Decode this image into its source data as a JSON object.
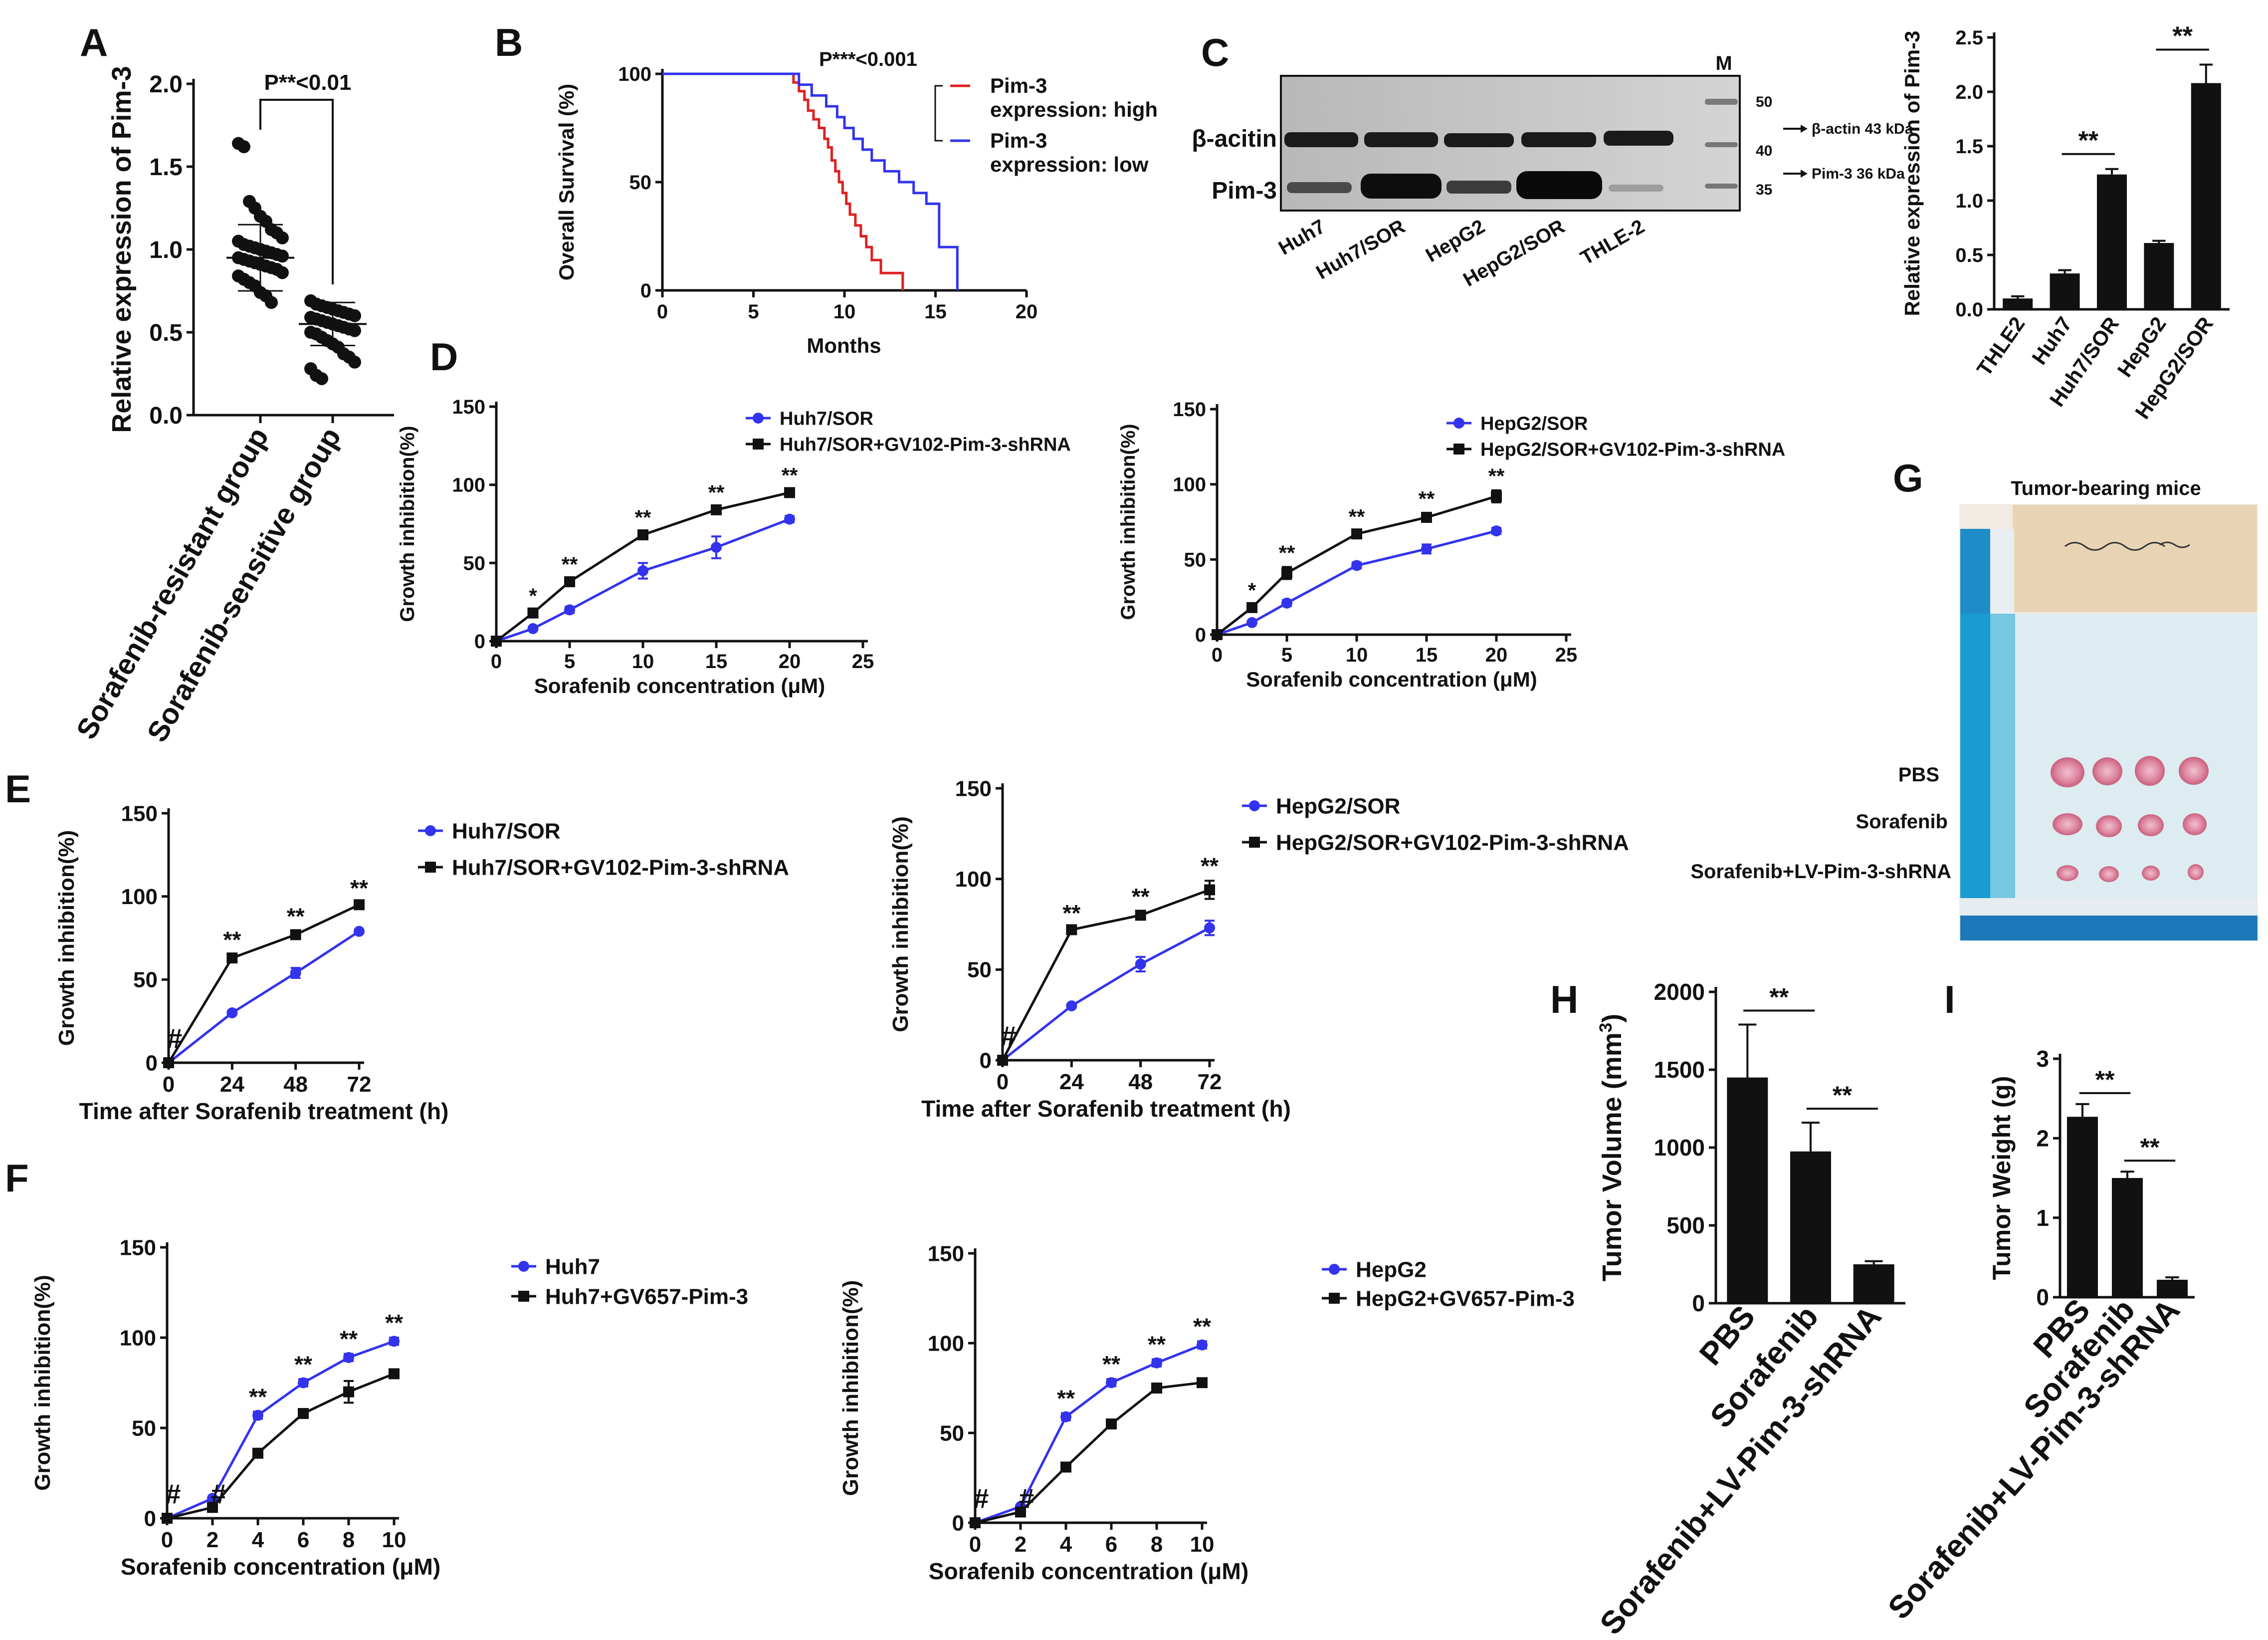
{
  "panel_letters": {
    "A": "A",
    "B": "B",
    "C": "C",
    "D": "D",
    "E": "E",
    "F": "F",
    "G": "G",
    "H": "H",
    "I": "I"
  },
  "colors": {
    "blue": "#3333ee",
    "black": "#111111",
    "red": "#e02020",
    "gray": "#f2f2f2"
  },
  "chart_data": [
    {
      "id": "A",
      "type": "scatter",
      "title": "",
      "ylabel": "Relative expression of Pim-3",
      "ylim": [
        0,
        2.0
      ],
      "yticks": [
        "0.0",
        "0.5",
        "1.0",
        "1.5",
        "2.0"
      ],
      "categories": [
        "Sorafenib-resistant group",
        "Sorafenib-sensitive group"
      ],
      "annotation": "P**<0.01",
      "means": [
        0.95,
        0.55
      ],
      "errors": [
        0.2,
        0.13
      ],
      "points": [
        [
          1.64,
          1.62,
          1.29,
          1.25,
          1.2,
          1.17,
          1.12,
          1.1,
          1.07,
          1.05,
          1.03,
          1.02,
          1.01,
          1.0,
          0.99,
          0.98,
          0.97,
          0.96,
          0.95,
          0.94,
          0.93,
          0.92,
          0.91,
          0.9,
          0.89,
          0.88,
          0.86,
          0.84,
          0.82,
          0.8,
          0.78,
          0.74,
          0.72,
          0.68
        ],
        [
          0.69,
          0.67,
          0.66,
          0.65,
          0.64,
          0.63,
          0.62,
          0.61,
          0.6,
          0.59,
          0.58,
          0.57,
          0.56,
          0.55,
          0.54,
          0.53,
          0.52,
          0.51,
          0.5,
          0.49,
          0.47,
          0.45,
          0.43,
          0.41,
          0.37,
          0.35,
          0.32,
          0.28,
          0.24,
          0.22
        ]
      ]
    },
    {
      "id": "B",
      "type": "line",
      "title": "",
      "xlabel": "Months",
      "ylabel": "Overall Survival (%)",
      "xlim": [
        0,
        20
      ],
      "ylim": [
        0,
        100
      ],
      "xticks": [
        "0",
        "5",
        "10",
        "15",
        "20"
      ],
      "yticks": [
        "0",
        "50",
        "100"
      ],
      "annotation": "P***<0.001",
      "series": [
        {
          "name": "Pim-3 expression: high",
          "line1": "Pim-3",
          "line2": "expression: high",
          "color": "#e02020",
          "x": [
            0,
            7.2,
            7.2,
            7.5,
            7.5,
            7.8,
            7.8,
            8.0,
            8.0,
            8.3,
            8.3,
            8.6,
            8.6,
            8.9,
            8.9,
            9.1,
            9.1,
            9.3,
            9.3,
            9.5,
            9.5,
            9.7,
            9.7,
            9.9,
            9.9,
            10.1,
            10.1,
            10.3,
            10.3,
            10.6,
            10.6,
            10.9,
            10.9,
            11.2,
            11.2,
            11.5,
            11.5,
            12.0,
            12.0,
            13.2,
            13.2
          ],
          "y": [
            100,
            100,
            96,
            96,
            92,
            92,
            88,
            88,
            83,
            83,
            79,
            79,
            75,
            75,
            70,
            70,
            66,
            66,
            60,
            60,
            55,
            55,
            50,
            50,
            45,
            45,
            40,
            40,
            35,
            35,
            30,
            30,
            25,
            25,
            20,
            20,
            14,
            14,
            8,
            8,
            0
          ]
        },
        {
          "name": "Pim-3 expression: low",
          "line1": "Pim-3",
          "line2": "expression: low",
          "color": "#3333ee",
          "x": [
            0,
            7.5,
            7.5,
            8.2,
            8.2,
            9.0,
            9.0,
            9.6,
            9.6,
            10.0,
            10.0,
            10.5,
            10.5,
            11.0,
            11.0,
            11.5,
            11.5,
            12.2,
            12.2,
            13.0,
            13.0,
            13.8,
            13.8,
            14.5,
            14.5,
            15.2,
            15.2,
            16.2,
            16.2
          ],
          "y": [
            100,
            100,
            95,
            95,
            90,
            90,
            85,
            85,
            80,
            80,
            75,
            75,
            70,
            70,
            65,
            65,
            60,
            60,
            55,
            55,
            50,
            50,
            45,
            45,
            40,
            40,
            20,
            20,
            0
          ]
        }
      ]
    },
    {
      "id": "C_bar",
      "type": "bar",
      "title": "",
      "ylabel": "Relative expression of Pim-3",
      "ylim": [
        0,
        2.5
      ],
      "yticks": [
        "0.0",
        "0.5",
        "1.0",
        "1.5",
        "2.0",
        "2.5"
      ],
      "categories": [
        "THLE2",
        "Huh7",
        "Huh7/SOR",
        "HepG2",
        "HepG2/SOR"
      ],
      "values": [
        0.1,
        0.33,
        1.24,
        0.61,
        2.08
      ],
      "errors": [
        0.02,
        0.03,
        0.05,
        0.02,
        0.17
      ],
      "sig": [
        {
          "from": 1,
          "to": 2,
          "label": "**"
        },
        {
          "from": 3,
          "to": 4,
          "label": "**"
        }
      ]
    },
    {
      "id": "D_left",
      "type": "line",
      "xlabel": "Sorafenib  concentration (μM)",
      "ylabel": "Growth inhibition(%)",
      "xlim": [
        0,
        25
      ],
      "ylim": [
        0,
        150
      ],
      "xticks": [
        "0",
        "5",
        "10",
        "15",
        "20",
        "25"
      ],
      "yticks": [
        "0",
        "50",
        "100",
        "150"
      ],
      "series": [
        {
          "name": "Huh7/SOR",
          "color": "#3333ee",
          "marker": "circle",
          "x": [
            0,
            2.5,
            5,
            10,
            15,
            20
          ],
          "y": [
            0,
            8,
            20,
            45,
            60,
            78
          ],
          "err": [
            0,
            1,
            2,
            5,
            7,
            2
          ]
        },
        {
          "name": "Huh7/SOR+GV102-Pim-3-shRNA",
          "color": "#111111",
          "marker": "square",
          "x": [
            0,
            2.5,
            5,
            10,
            15,
            20
          ],
          "y": [
            0,
            18,
            38,
            68,
            84,
            95
          ],
          "err": [
            0,
            2,
            2,
            2,
            2,
            2
          ]
        }
      ],
      "marks": [
        {
          "x": 2.5,
          "label": "*"
        },
        {
          "x": 5,
          "label": "**"
        },
        {
          "x": 10,
          "label": "**"
        },
        {
          "x": 15,
          "label": "**"
        },
        {
          "x": 20,
          "label": "**"
        }
      ]
    },
    {
      "id": "D_right",
      "type": "line",
      "xlabel": "Sorafenib  concentration (μM)",
      "ylabel": "Growth inhibition(%)",
      "xlim": [
        0,
        25
      ],
      "ylim": [
        0,
        150
      ],
      "xticks": [
        "0",
        "5",
        "10",
        "15",
        "20",
        "25"
      ],
      "yticks": [
        "0",
        "50",
        "100",
        "150"
      ],
      "series": [
        {
          "name": "HepG2/SOR",
          "color": "#3333ee",
          "marker": "circle",
          "x": [
            0,
            2.5,
            5,
            10,
            15,
            20
          ],
          "y": [
            0,
            8,
            21,
            46,
            57,
            69
          ],
          "err": [
            0,
            1,
            2,
            2,
            3,
            2
          ]
        },
        {
          "name": "HepG2/SOR+GV102-Pim-3-shRNA",
          "color": "#111111",
          "marker": "square",
          "x": [
            0,
            2.5,
            5,
            10,
            15,
            20
          ],
          "y": [
            0,
            18,
            41,
            67,
            78,
            92
          ],
          "err": [
            0,
            2,
            4,
            2,
            3,
            4
          ]
        }
      ],
      "marks": [
        {
          "x": 2.5,
          "label": "*"
        },
        {
          "x": 5,
          "label": "**"
        },
        {
          "x": 10,
          "label": "**"
        },
        {
          "x": 15,
          "label": "**"
        },
        {
          "x": 20,
          "label": "**"
        }
      ]
    },
    {
      "id": "E_left",
      "type": "line",
      "xlabel": "Time after Sorafenib  treatment (h)",
      "ylabel": "Growth inhibition(%)",
      "xcats": [
        "0",
        "24",
        "48",
        "72"
      ],
      "ylim": [
        0,
        150
      ],
      "yticks": [
        "0",
        "50",
        "100",
        "150"
      ],
      "series": [
        {
          "name": "Huh7/SOR",
          "color": "#3333ee",
          "marker": "circle",
          "y": [
            0,
            30,
            54,
            79
          ],
          "err": [
            0,
            1,
            3,
            1
          ]
        },
        {
          "name": "Huh7/SOR+GV102-Pim-3-shRNA",
          "color": "#111111",
          "marker": "square",
          "y": [
            0,
            63,
            77,
            95
          ],
          "err": [
            0,
            2,
            2,
            1
          ]
        }
      ],
      "marks": [
        {
          "i": 0,
          "label": "#"
        },
        {
          "i": 1,
          "label": "**"
        },
        {
          "i": 2,
          "label": "**"
        },
        {
          "i": 3,
          "label": "**"
        }
      ]
    },
    {
      "id": "E_right",
      "type": "line",
      "xlabel": "Time after Sorafenib  treatment (h)",
      "ylabel": "Growth inhibition(%)",
      "xcats": [
        "0",
        "24",
        "48",
        "72"
      ],
      "ylim": [
        0,
        150
      ],
      "yticks": [
        "0",
        "50",
        "100",
        "150"
      ],
      "series": [
        {
          "name": "HepG2/SOR",
          "color": "#3333ee",
          "marker": "circle",
          "y": [
            0,
            30,
            53,
            73
          ],
          "err": [
            0,
            1,
            4,
            4
          ]
        },
        {
          "name": "HepG2/SOR+GV102-Pim-3-shRNA",
          "color": "#111111",
          "marker": "square",
          "y": [
            0,
            72,
            80,
            94
          ],
          "err": [
            0,
            1,
            2,
            5
          ]
        }
      ],
      "marks": [
        {
          "i": 0,
          "label": "#"
        },
        {
          "i": 1,
          "label": "**"
        },
        {
          "i": 2,
          "label": "**"
        },
        {
          "i": 3,
          "label": "**"
        }
      ]
    },
    {
      "id": "F_left",
      "type": "line",
      "xlabel": "Sorafenib  concentration (μM)",
      "ylabel": "Growth inhibition(%)",
      "xcats": [
        "0",
        "2",
        "4",
        "6",
        "8",
        "10"
      ],
      "ylim": [
        0,
        150
      ],
      "yticks": [
        "0",
        "50",
        "100",
        "150"
      ],
      "series": [
        {
          "name": "Huh7",
          "color": "#3333ee",
          "marker": "circle",
          "y": [
            0,
            11,
            57,
            75,
            89,
            98
          ],
          "err": [
            0,
            1,
            2,
            2,
            2,
            2
          ]
        },
        {
          "name": "Huh7+GV657-Pim-3",
          "color": "#111111",
          "marker": "square",
          "y": [
            0,
            6,
            36,
            58,
            70,
            80
          ],
          "err": [
            0,
            1,
            2,
            2,
            6,
            2
          ]
        }
      ],
      "marks": [
        {
          "i": 0,
          "label": "#"
        },
        {
          "i": 1,
          "label": "#"
        },
        {
          "i": 2,
          "label": "**"
        },
        {
          "i": 3,
          "label": "**"
        },
        {
          "i": 4,
          "label": "**"
        },
        {
          "i": 5,
          "label": "**"
        }
      ]
    },
    {
      "id": "F_right",
      "type": "line",
      "xlabel": "Sorafenib  concentration (μM)",
      "ylabel": "Growth inhibition(%)",
      "xcats": [
        "0",
        "2",
        "4",
        "6",
        "8",
        "10"
      ],
      "ylim": [
        0,
        150
      ],
      "yticks": [
        "0",
        "50",
        "100",
        "150"
      ],
      "series": [
        {
          "name": "HepG2",
          "color": "#3333ee",
          "marker": "circle",
          "y": [
            0,
            9,
            59,
            78,
            89,
            99
          ],
          "err": [
            0,
            1,
            2,
            2,
            2,
            2
          ]
        },
        {
          "name": "HepG2+GV657-Pim-3",
          "color": "#111111",
          "marker": "square",
          "y": [
            0,
            6,
            31,
            55,
            75,
            78
          ],
          "err": [
            0,
            1,
            2,
            2,
            2,
            2
          ]
        }
      ],
      "marks": [
        {
          "i": 0,
          "label": "#"
        },
        {
          "i": 1,
          "label": "#"
        },
        {
          "i": 2,
          "label": "**"
        },
        {
          "i": 3,
          "label": "**"
        },
        {
          "i": 4,
          "label": "**"
        },
        {
          "i": 5,
          "label": "**"
        }
      ]
    },
    {
      "id": "H",
      "type": "bar",
      "ylabel": "Tumor Volume (mm",
      "ylabel_sup": "3",
      "ylabel_end": ")",
      "ylim": [
        0,
        2000
      ],
      "yticks": [
        "0",
        "500",
        "1000",
        "1500",
        "2000"
      ],
      "categories": [
        "PBS",
        "Sorafenib",
        "Sorafenib+LV-Pim-3-shRNA"
      ],
      "values": [
        1450,
        975,
        250
      ],
      "errors": [
        340,
        185,
        20
      ],
      "sig": [
        {
          "from": 0,
          "to": 1,
          "label": "**"
        },
        {
          "from": 1,
          "to": 2,
          "label": "**"
        }
      ]
    },
    {
      "id": "I",
      "type": "bar",
      "ylabel": "Tumor Weight (g)",
      "ylim": [
        0,
        3
      ],
      "yticks": [
        "0",
        "1",
        "2",
        "3"
      ],
      "categories": [
        "PBS",
        "Sorafenib",
        "Sorafenib+LV-Pim-3-shRNA"
      ],
      "values": [
        2.27,
        1.5,
        0.22
      ],
      "errors": [
        0.16,
        0.08,
        0.03
      ],
      "sig": [
        {
          "from": 0,
          "to": 1,
          "label": "**"
        },
        {
          "from": 1,
          "to": 2,
          "label": "**"
        }
      ]
    }
  ],
  "western": {
    "marker_lane": "M",
    "row_labels": [
      "β-acitin",
      "Pim-3"
    ],
    "lanes": [
      "Huh7",
      "Huh7/SOR",
      "HepG2",
      "HepG2/SOR",
      "THLE-2"
    ],
    "ladder": [
      "50",
      "40",
      "35"
    ],
    "annotations": [
      "β-actin 43 kDa",
      "Pim-3 36 kDa"
    ]
  },
  "photo": {
    "title": "Tumor-bearing mice",
    "rows": [
      "PBS",
      "Sorafenib",
      "Sorafenib+LV-Pim-3-shRNA"
    ]
  }
}
